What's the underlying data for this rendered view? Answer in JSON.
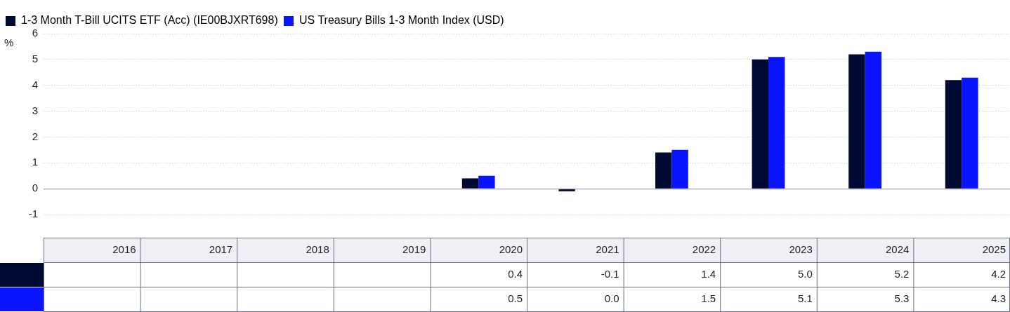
{
  "chart_data": {
    "type": "bar",
    "ylabel": "%",
    "categories": [
      "2016",
      "2017",
      "2018",
      "2019",
      "2020",
      "2021",
      "2022",
      "2023",
      "2024",
      "2025"
    ],
    "series": [
      {
        "name": "1-3 Month T-Bill UCITS ETF (Acc) (IE00BJXRT698)",
        "color": "#000a32",
        "values": [
          null,
          null,
          null,
          null,
          0.4,
          -0.1,
          1.4,
          5.0,
          5.2,
          4.2
        ],
        "value_labels": [
          null,
          null,
          null,
          null,
          "0.4",
          "-0.1",
          "1.4",
          "5.0",
          "5.2",
          "4.2"
        ]
      },
      {
        "name": "US Treasury Bills 1-3 Month Index (USD)",
        "color": "#0a14ff",
        "values": [
          null,
          null,
          null,
          null,
          0.5,
          0.0,
          1.5,
          5.1,
          5.3,
          4.3
        ],
        "value_labels": [
          null,
          null,
          null,
          null,
          "0.5",
          "0.0",
          "1.5",
          "5.1",
          "5.3",
          "4.3"
        ]
      }
    ],
    "ylim": [
      -1,
      6
    ],
    "yticks": [
      -1,
      0,
      1,
      2,
      3,
      4,
      5,
      6
    ],
    "grid": "y",
    "legend": "top left"
  }
}
